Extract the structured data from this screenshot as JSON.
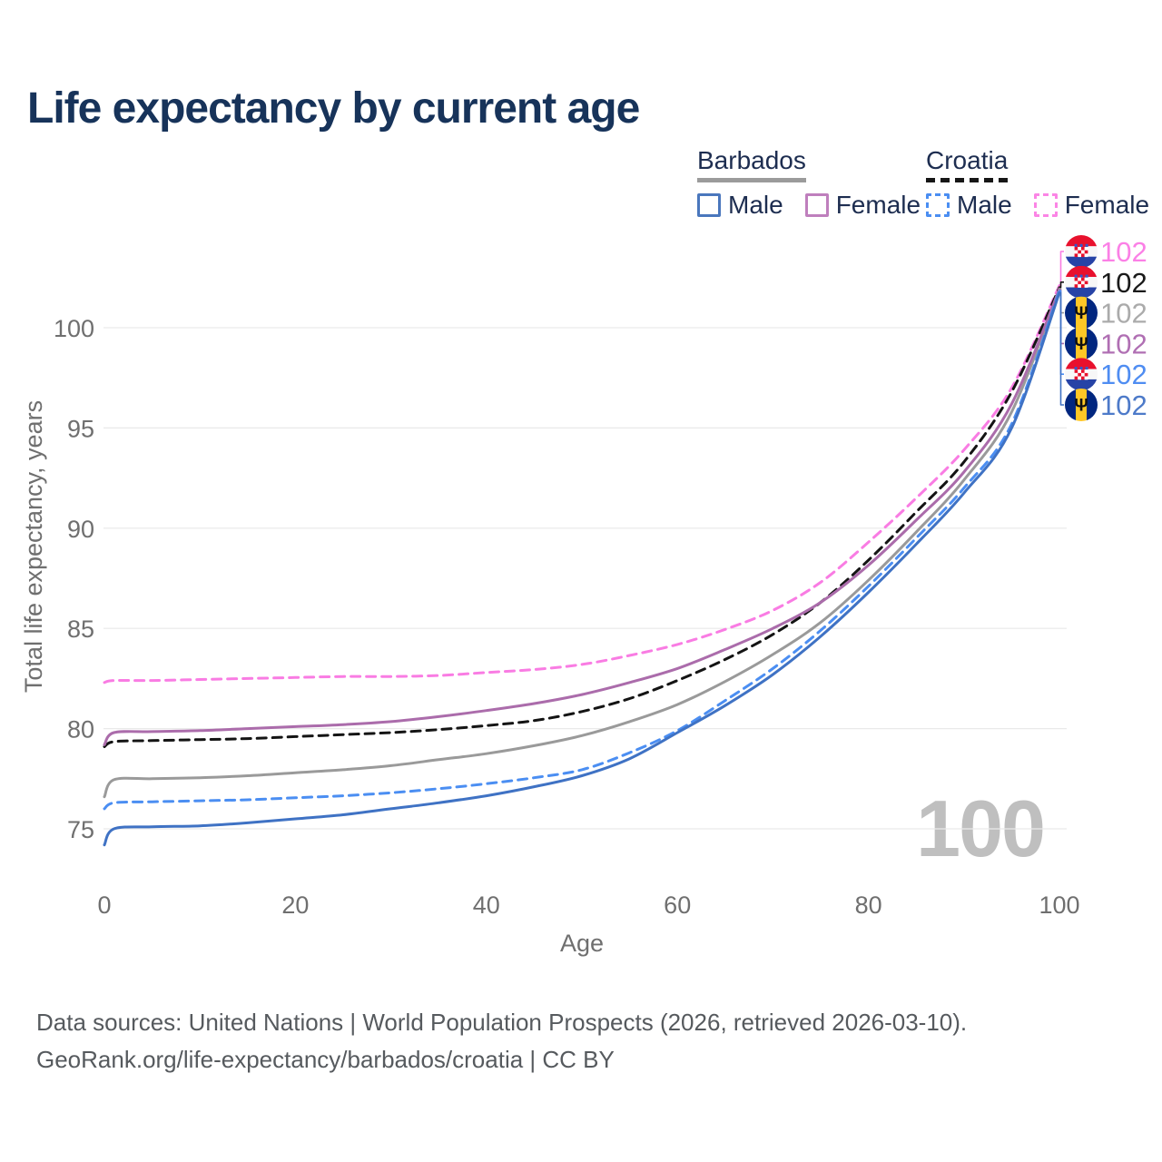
{
  "header": {
    "title": "Life expectancy by current age"
  },
  "legend": {
    "groups": [
      {
        "name": "Barbados",
        "underline_style": "solid",
        "underline_color": "#9b9b9b",
        "items": [
          {
            "label": "Male",
            "color": "#4a77bd",
            "dash": false
          },
          {
            "label": "Female",
            "color": "#bf7fbd",
            "dash": false
          }
        ]
      },
      {
        "name": "Croatia",
        "underline_style": "dashed",
        "underline_color": "#161616",
        "items": [
          {
            "label": "Male",
            "color": "#4b8ef2",
            "dash": true
          },
          {
            "label": "Female",
            "color": "#fb85e5",
            "dash": true
          }
        ]
      }
    ]
  },
  "chart_data": {
    "type": "line",
    "title": "Life expectancy by current age",
    "xlabel": "Age",
    "ylabel": "Total life expectancy, years",
    "x_ticks": [
      0,
      20,
      40,
      60,
      80,
      100
    ],
    "y_ticks": [
      75,
      80,
      85,
      90,
      95,
      100
    ],
    "xlim": [
      0,
      100
    ],
    "ylim": [
      74,
      103
    ],
    "grid": true,
    "legend_position": "top-right",
    "x": [
      0,
      1,
      5,
      10,
      15,
      20,
      25,
      30,
      35,
      40,
      45,
      50,
      55,
      60,
      65,
      70,
      75,
      80,
      85,
      90,
      95,
      100
    ],
    "series": [
      {
        "id": "croatia-female",
        "name": "Croatia Female",
        "country": "Croatia",
        "sex": "Female",
        "color": "#f97ce3",
        "label_color": "#fb80e6",
        "dash": true,
        "flag": "croatia",
        "end_label": "102",
        "values": [
          82.3,
          82.4,
          82.4,
          82.45,
          82.5,
          82.55,
          82.6,
          82.6,
          82.65,
          82.8,
          82.95,
          83.2,
          83.65,
          84.2,
          84.95,
          85.9,
          87.3,
          89.3,
          91.5,
          93.9,
          97.0,
          102.1
        ]
      },
      {
        "id": "croatia-total",
        "name": "Croatia",
        "country": "Croatia",
        "sex": "Both",
        "color": "#141414",
        "label_color": "#1a1a1a",
        "dash": true,
        "flag": "croatia",
        "end_label": "102",
        "values": [
          79.1,
          79.35,
          79.4,
          79.45,
          79.5,
          79.6,
          79.7,
          79.8,
          79.95,
          80.15,
          80.4,
          80.85,
          81.5,
          82.4,
          83.45,
          84.7,
          86.3,
          88.4,
          90.8,
          93.3,
          96.8,
          102.0
        ]
      },
      {
        "id": "barbados-total",
        "name": "Barbados",
        "country": "Barbados",
        "sex": "Both",
        "color": "#9a9a9a",
        "label_color": "#ababab",
        "dash": false,
        "flag": "barbados",
        "end_label": "102",
        "values": [
          76.6,
          77.45,
          77.5,
          77.55,
          77.65,
          77.8,
          77.95,
          78.15,
          78.45,
          78.75,
          79.15,
          79.65,
          80.35,
          81.2,
          82.35,
          83.7,
          85.3,
          87.4,
          89.8,
          92.4,
          95.8,
          101.95
        ]
      },
      {
        "id": "barbados-female",
        "name": "Barbados Female",
        "country": "Barbados",
        "sex": "Female",
        "color": "#ab6cab",
        "label_color": "#b06fb3",
        "dash": false,
        "flag": "barbados",
        "end_label": "102",
        "values": [
          79.2,
          79.8,
          79.85,
          79.9,
          80.0,
          80.1,
          80.2,
          80.35,
          80.6,
          80.9,
          81.25,
          81.7,
          82.3,
          83.0,
          83.95,
          85.0,
          86.3,
          88.15,
          90.4,
          92.8,
          96.2,
          101.9
        ]
      },
      {
        "id": "croatia-male",
        "name": "Croatia Male",
        "country": "Croatia",
        "sex": "Male",
        "color": "#4b8ef2",
        "label_color": "#4f8df2",
        "dash": true,
        "flag": "croatia",
        "end_label": "102",
        "values": [
          76.0,
          76.3,
          76.35,
          76.4,
          76.45,
          76.55,
          76.65,
          76.8,
          77.0,
          77.25,
          77.55,
          77.95,
          78.8,
          79.9,
          81.4,
          83.0,
          84.9,
          87.1,
          89.5,
          92.0,
          95.2,
          101.85
        ]
      },
      {
        "id": "barbados-male",
        "name": "Barbados Male",
        "country": "Barbados",
        "sex": "Male",
        "color": "#3f72c4",
        "label_color": "#4d7ac9",
        "dash": false,
        "flag": "barbados",
        "end_label": "102",
        "values": [
          74.2,
          75.0,
          75.1,
          75.15,
          75.3,
          75.5,
          75.7,
          76.0,
          76.3,
          76.65,
          77.1,
          77.65,
          78.5,
          79.8,
          81.15,
          82.7,
          84.6,
          86.8,
          89.2,
          91.75,
          95.0,
          101.75
        ]
      }
    ]
  },
  "watermark": "100",
  "footer": {
    "line1": "Data sources: United Nations | World Population Prospects (2026, retrieved 2026-03-10).",
    "line2": "GeoRank.org/life-expectancy/barbados/croatia | CC BY"
  }
}
